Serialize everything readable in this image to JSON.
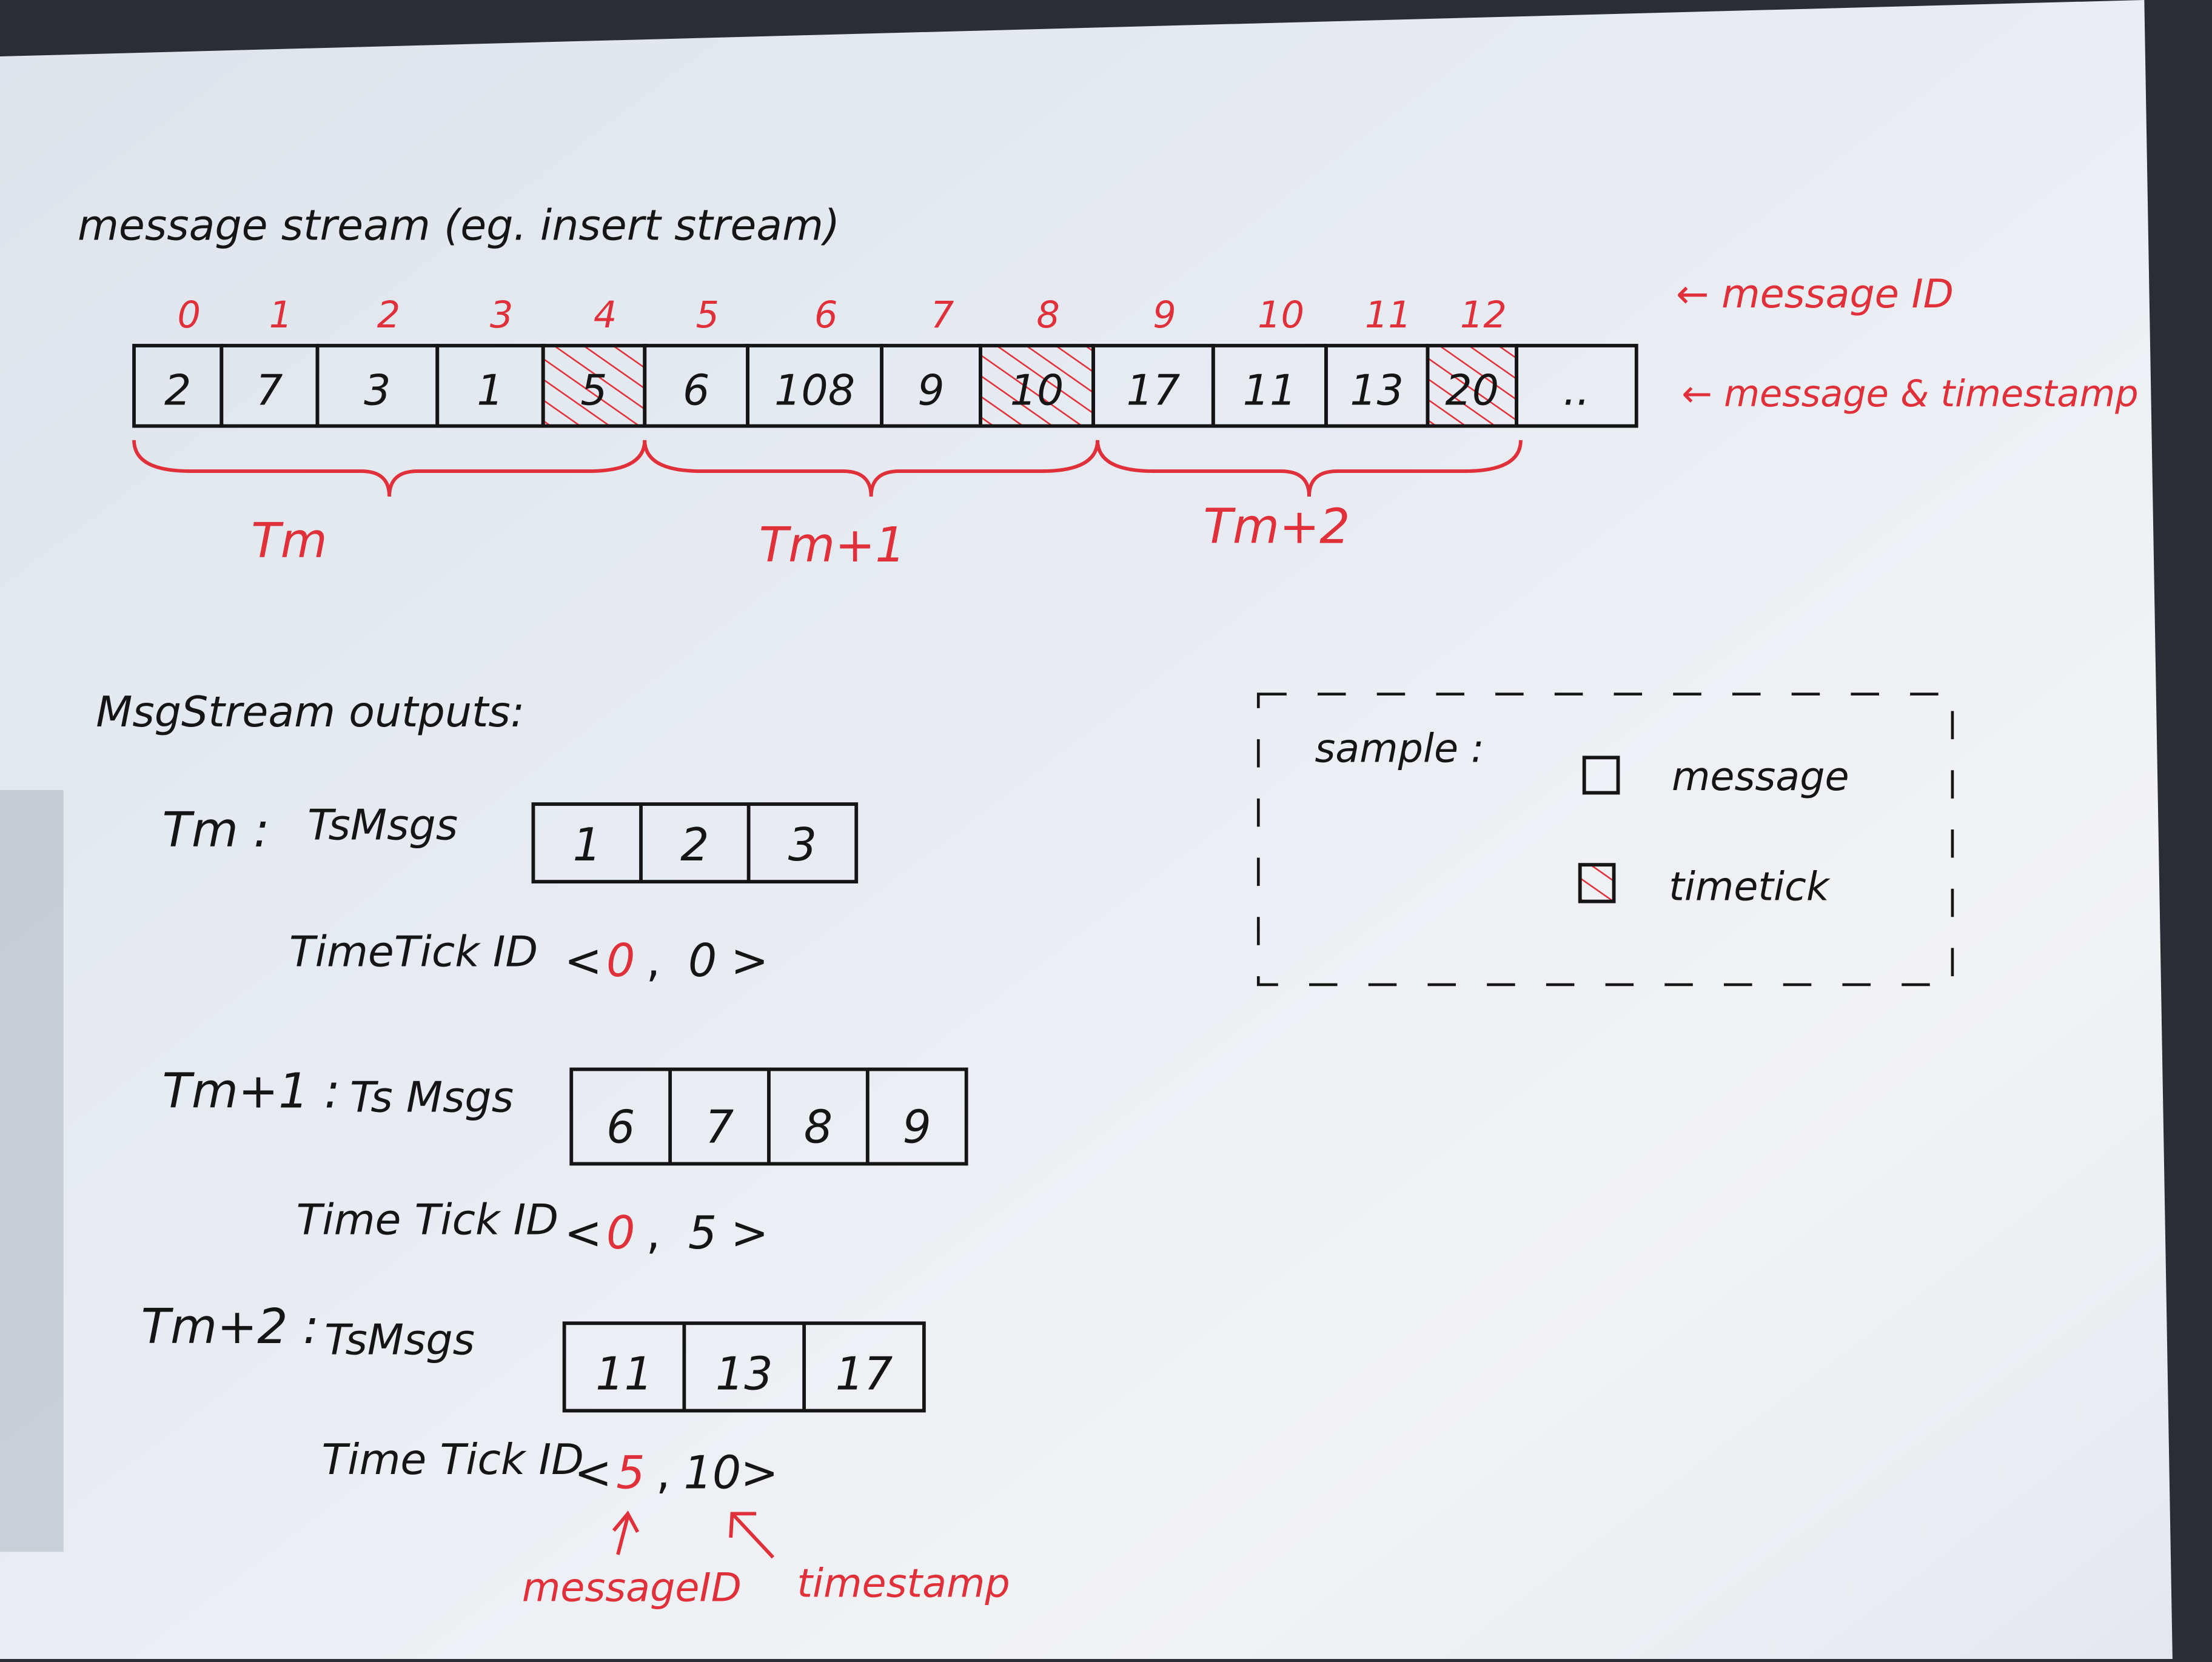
{
  "title": "message stream (eg. insert stream)",
  "stream": {
    "message_ids": [
      "0",
      "1",
      "2",
      "3",
      "4",
      "5",
      "6",
      "7",
      "8",
      "9",
      "10",
      "11",
      "12"
    ],
    "timestamps": [
      "2",
      "7",
      "3",
      "1",
      "5",
      "6",
      "108",
      "9",
      "10",
      "17",
      "11",
      "13",
      "20",
      ".."
    ],
    "timetick_indices": [
      4,
      8,
      12
    ],
    "label_message_id": "← message ID",
    "label_message_timestamp": "← message & timestamp",
    "groups": [
      "Tm",
      "Tm+1",
      "Tm+2"
    ]
  },
  "outputs": {
    "heading": "MsgStream outputs:",
    "items": [
      {
        "label": "Tm :",
        "msgs_label": "TsMsgs",
        "msgs": [
          "1",
          "2",
          "3"
        ],
        "tick_label": "TimeTick ID",
        "tick_open": "<",
        "tick_msg_id": "0",
        "tick_sep": ",",
        "tick_ts": "0",
        "tick_close": ">"
      },
      {
        "label": "Tm+1 :",
        "msgs_label": "Ts Msgs",
        "msgs": [
          "6",
          "7",
          "8",
          "9"
        ],
        "tick_label": "Time Tick ID",
        "tick_open": "<",
        "tick_msg_id": "0",
        "tick_sep": ",",
        "tick_ts": "5",
        "tick_close": ">"
      },
      {
        "label": "Tm+2 :",
        "msgs_label": "TsMsgs",
        "msgs": [
          "11",
          "13",
          "17"
        ],
        "tick_label": "Time Tick ID",
        "tick_open": "<",
        "tick_msg_id": "5",
        "tick_sep": ",",
        "tick_ts": "10",
        "tick_close": ">"
      }
    ],
    "annotation_message_id": "messageID",
    "annotation_timestamp": "timestamp"
  },
  "legend": {
    "title": "sample :",
    "message": "message",
    "timetick": "timetick"
  },
  "colors": {
    "ink": "#151515",
    "red_pen": "#e0303a",
    "paper": "#e9edf2"
  }
}
